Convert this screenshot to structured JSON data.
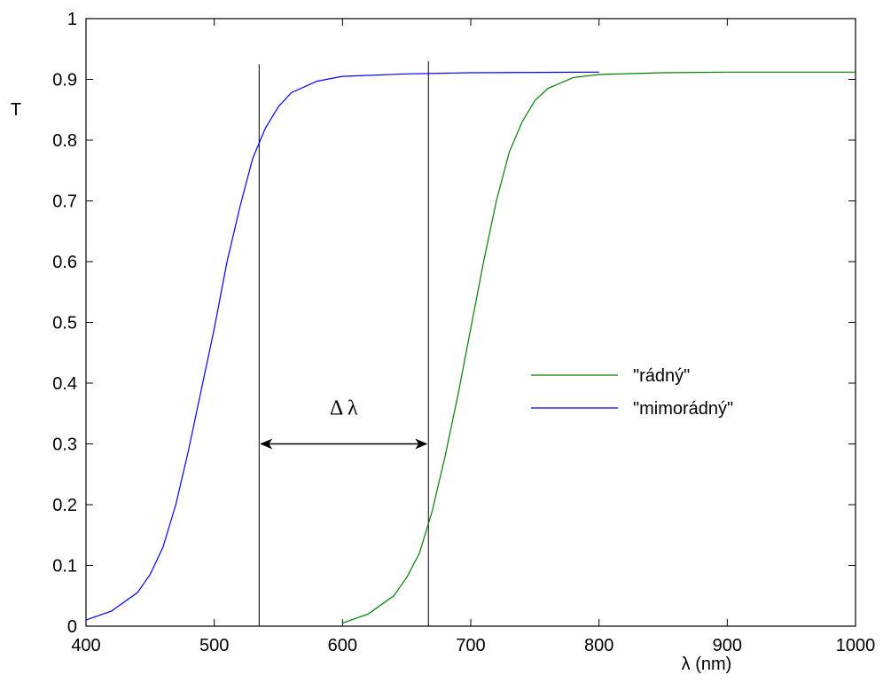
{
  "chart_data": {
    "type": "line",
    "title": "",
    "xlabel": "λ (nm)",
    "ylabel": "T",
    "xlim": [
      400,
      1000
    ],
    "ylim": [
      0,
      1
    ],
    "x_ticks": [
      400,
      500,
      600,
      700,
      800,
      900,
      1000
    ],
    "x_tick_labels": [
      "400",
      "500",
      "600",
      "700",
      "800",
      "900",
      "1000"
    ],
    "y_ticks": [
      0,
      0.1,
      0.2,
      0.3,
      0.4,
      0.5,
      0.6,
      0.7,
      0.8,
      0.9,
      1
    ],
    "y_tick_labels": [
      "0",
      "0.1",
      "0.2",
      "0.3",
      "0.4",
      "0.5",
      "0.6",
      "0.7",
      "0.8",
      "0.9",
      "1"
    ],
    "grid": false,
    "legend_position": "center-right",
    "series": [
      {
        "name": "\"rádný\"",
        "color": "#008000",
        "x": [
          600,
          620,
          640,
          650,
          660,
          670,
          680,
          690,
          700,
          710,
          720,
          730,
          740,
          750,
          760,
          780,
          800,
          850,
          900,
          1000
        ],
        "y": [
          0.005,
          0.02,
          0.05,
          0.08,
          0.12,
          0.19,
          0.28,
          0.38,
          0.49,
          0.6,
          0.7,
          0.78,
          0.83,
          0.865,
          0.885,
          0.903,
          0.908,
          0.911,
          0.912,
          0.912
        ]
      },
      {
        "name": "\"mimorádný\"",
        "color": "#0000ff",
        "x": [
          400,
          420,
          440,
          450,
          460,
          470,
          480,
          490,
          500,
          510,
          520,
          530,
          540,
          550,
          560,
          580,
          600,
          650,
          700,
          800
        ],
        "y": [
          0.01,
          0.025,
          0.055,
          0.085,
          0.13,
          0.2,
          0.29,
          0.39,
          0.49,
          0.6,
          0.69,
          0.77,
          0.82,
          0.855,
          0.878,
          0.897,
          0.905,
          0.909,
          0.911,
          0.912
        ]
      }
    ],
    "vertical_lines": [
      {
        "x": 535,
        "y_top": 0.925
      },
      {
        "x": 667,
        "y_top": 0.93
      }
    ],
    "annotation": {
      "text": "Δ λ",
      "arrow_from_x": 535,
      "arrow_to_x": 667,
      "arrow_y": 0.3,
      "label_y": 0.36
    }
  }
}
